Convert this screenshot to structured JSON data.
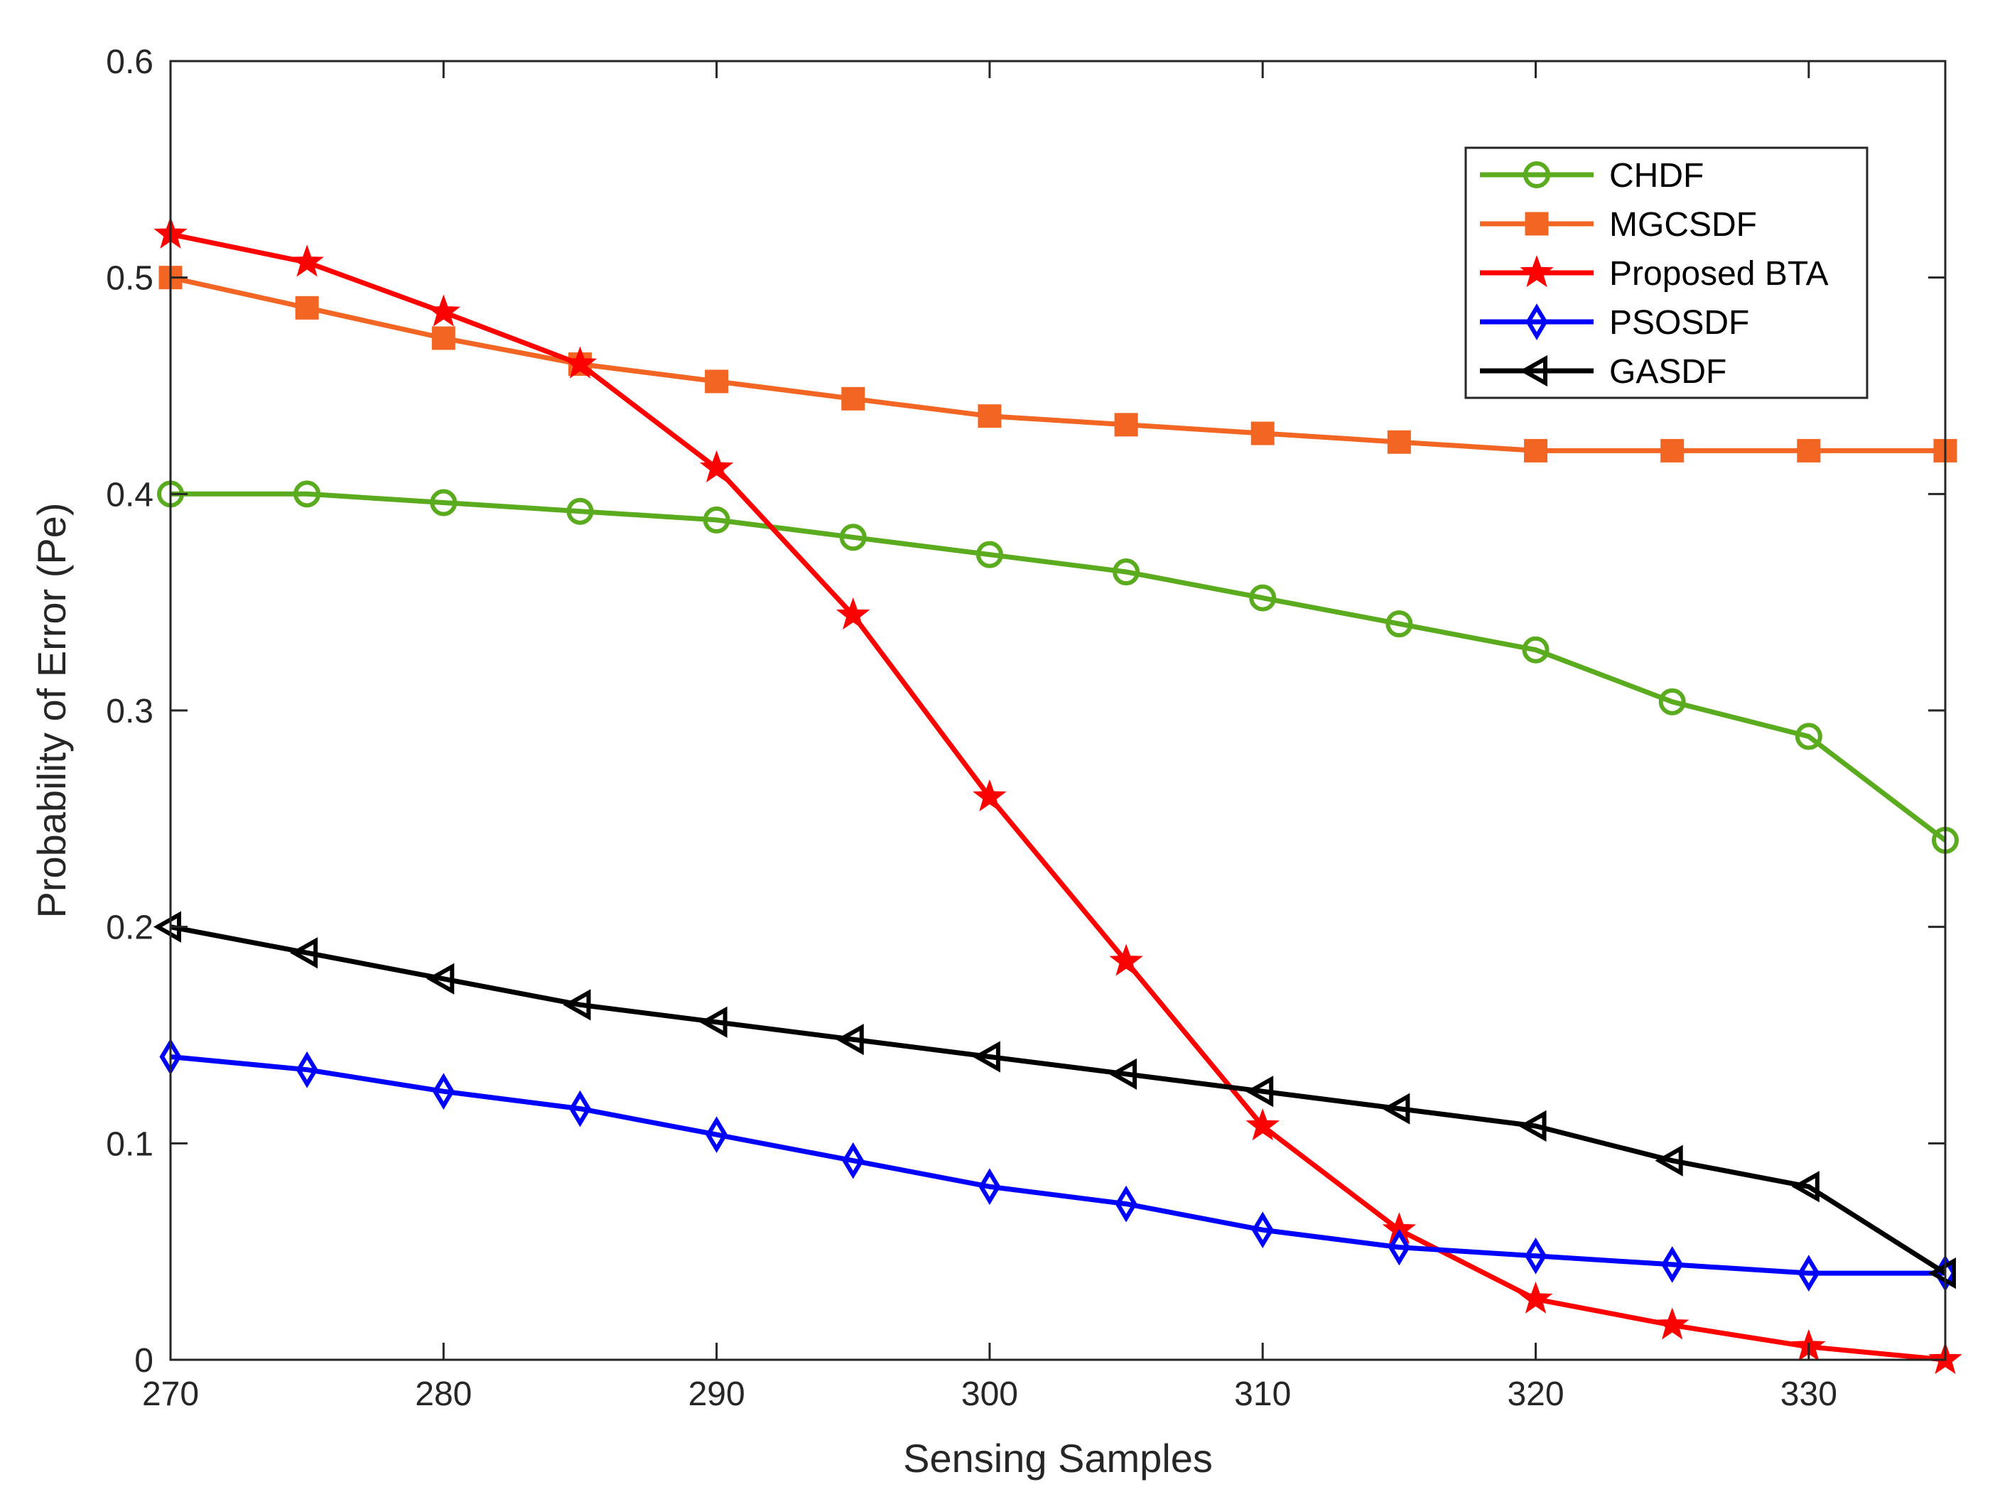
{
  "chart_data": {
    "type": "line",
    "title": "",
    "xlabel": "Sensing Samples",
    "ylabel": "Probability of Error (Pe)",
    "xlim": [
      270,
      335
    ],
    "ylim": [
      0,
      0.6
    ],
    "xticks": [
      270,
      280,
      290,
      300,
      310,
      320,
      330
    ],
    "xtick_labels": [
      "270",
      "280",
      "290",
      "300",
      "310",
      "320",
      "330"
    ],
    "yticks": [
      0,
      0.1,
      0.2,
      0.3,
      0.4,
      0.5,
      0.6
    ],
    "ytick_labels": [
      "0",
      "0.1",
      "0.2",
      "0.3",
      "0.4",
      "0.5",
      "0.6"
    ],
    "grid": false,
    "legend_position": "top-right",
    "x": [
      270,
      275,
      280,
      285,
      290,
      295,
      300,
      305,
      310,
      315,
      320,
      325,
      330,
      335
    ],
    "series": [
      {
        "name": "CHDF",
        "color": "#5aab1e",
        "marker": "circle",
        "values": [
          0.4,
          0.4,
          0.396,
          0.392,
          0.388,
          0.38,
          0.372,
          0.364,
          0.352,
          0.34,
          0.328,
          0.304,
          0.288,
          0.24
        ]
      },
      {
        "name": "MGCSDF",
        "color": "#f26522",
        "marker": "square",
        "values": [
          0.5,
          0.486,
          0.472,
          0.46,
          0.452,
          0.444,
          0.436,
          0.432,
          0.428,
          0.424,
          0.42,
          0.42,
          0.42,
          0.42
        ]
      },
      {
        "name": "Proposed BTA",
        "color": "#ff0000",
        "marker": "star",
        "values": [
          0.52,
          0.507,
          0.484,
          0.46,
          0.412,
          0.344,
          0.26,
          0.184,
          0.108,
          0.06,
          0.028,
          0.016,
          0.006,
          0.0
        ]
      },
      {
        "name": "PSOSDF",
        "color": "#0000ff",
        "marker": "diamond",
        "values": [
          0.14,
          0.134,
          0.124,
          0.116,
          0.104,
          0.092,
          0.08,
          0.072,
          0.06,
          0.052,
          0.048,
          0.044,
          0.04,
          0.04
        ]
      },
      {
        "name": "GASDF",
        "color": "#000000",
        "marker": "triangle-left",
        "values": [
          0.2,
          0.188,
          0.176,
          0.164,
          0.156,
          0.148,
          0.14,
          0.132,
          0.124,
          0.116,
          0.108,
          0.092,
          0.08,
          0.04
        ]
      }
    ]
  }
}
